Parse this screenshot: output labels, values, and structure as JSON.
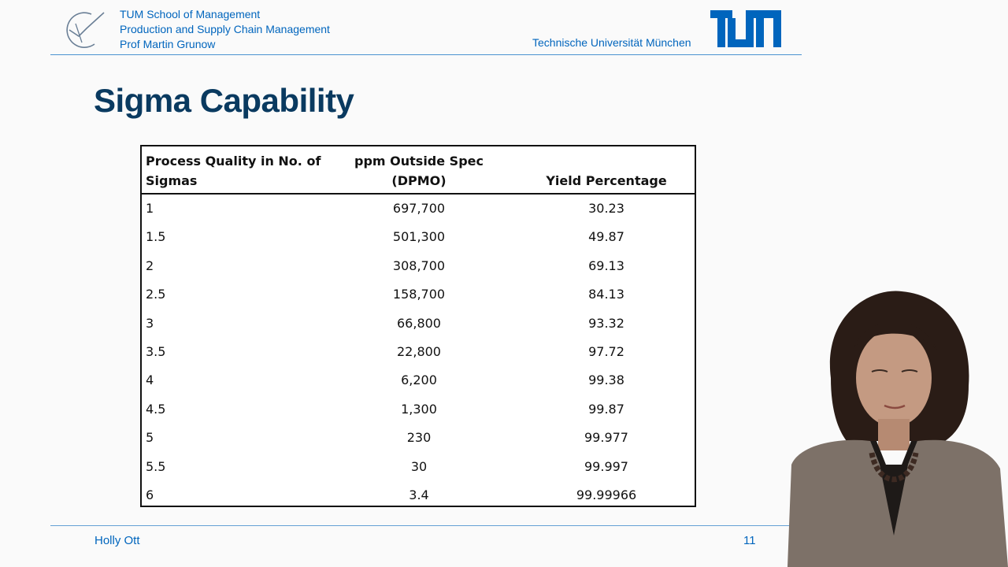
{
  "header": {
    "institution_lines": [
      "TUM School of Management",
      "Production and Supply Chain Management",
      "Prof Martin Grunow"
    ],
    "university": "Technische Universität München",
    "logo_icon": "tum-logo",
    "school_logo_icon": "tum-school-of-management-logo",
    "brand_color": "#0065bd"
  },
  "slide": {
    "title": "Sigma Capability",
    "title_color": "#0a3a60"
  },
  "table": {
    "headers": {
      "col1": [
        "Process Quality in No. of",
        "Sigmas"
      ],
      "col2": [
        "ppm Outside Spec",
        "(DPMO)"
      ],
      "col3": [
        "Yield Percentage"
      ]
    },
    "rows": [
      {
        "sigma": "1",
        "dpmo": "697,700",
        "yield": "30.23"
      },
      {
        "sigma": "1.5",
        "dpmo": "501,300",
        "yield": "49.87"
      },
      {
        "sigma": "2",
        "dpmo": "308,700",
        "yield": "69.13"
      },
      {
        "sigma": "2.5",
        "dpmo": "158,700",
        "yield": "84.13"
      },
      {
        "sigma": "3",
        "dpmo": "66,800",
        "yield": "93.32"
      },
      {
        "sigma": "3.5",
        "dpmo": "22,800",
        "yield": "97.72"
      },
      {
        "sigma": "4",
        "dpmo": "6,200",
        "yield": "99.38"
      },
      {
        "sigma": "4.5",
        "dpmo": "1,300",
        "yield": "99.87"
      },
      {
        "sigma": "5",
        "dpmo": "230",
        "yield": "99.977"
      },
      {
        "sigma": "5.5",
        "dpmo": "30",
        "yield": "99.997"
      },
      {
        "sigma": "6",
        "dpmo": "3.4",
        "yield": "99.99966"
      }
    ]
  },
  "footer": {
    "presenter": "Holly Ott",
    "page_number": "11"
  },
  "video": {
    "icon": "presenter-video-overlay"
  }
}
